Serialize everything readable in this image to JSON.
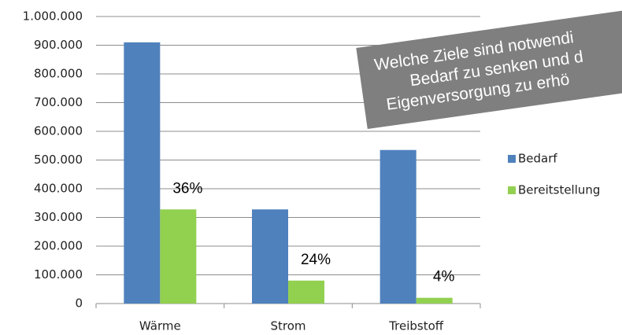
{
  "chart_data": {
    "type": "bar",
    "categories": [
      "Wärme",
      "Strom",
      "Treibstoff"
    ],
    "series": [
      {
        "name": "Bedarf",
        "color": "#4f81bd",
        "values": [
          910000,
          328000,
          535000
        ]
      },
      {
        "name": "Bereitstellung",
        "color": "#92d050",
        "values": [
          328000,
          80000,
          20000
        ]
      }
    ],
    "ylim": [
      0,
      1000000
    ],
    "yticks": [
      0,
      {
        "value": 100000,
        "label": "100.000"
      },
      {
        "value": 200000,
        "label": "200.000"
      },
      {
        "value": 300000,
        "label": "300.000"
      },
      {
        "value": 400000,
        "label": "400.000"
      },
      {
        "value": 500000,
        "label": "500.000"
      },
      {
        "value": 600000,
        "label": "600.000"
      },
      {
        "value": 700000,
        "label": "700.000"
      },
      {
        "value": 800000,
        "label": "800.000"
      },
      {
        "value": 900000,
        "label": "900.000"
      },
      {
        "value": 1000000,
        "label": "1.000.000"
      }
    ],
    "grid": true,
    "legend": "right",
    "annotations": [
      "36%",
      "24%",
      "4%"
    ],
    "banner": [
      "Welche Ziele sind notwendi",
      "Bedarf zu senken und d",
      "Eigenversorgung zu erhö"
    ]
  }
}
